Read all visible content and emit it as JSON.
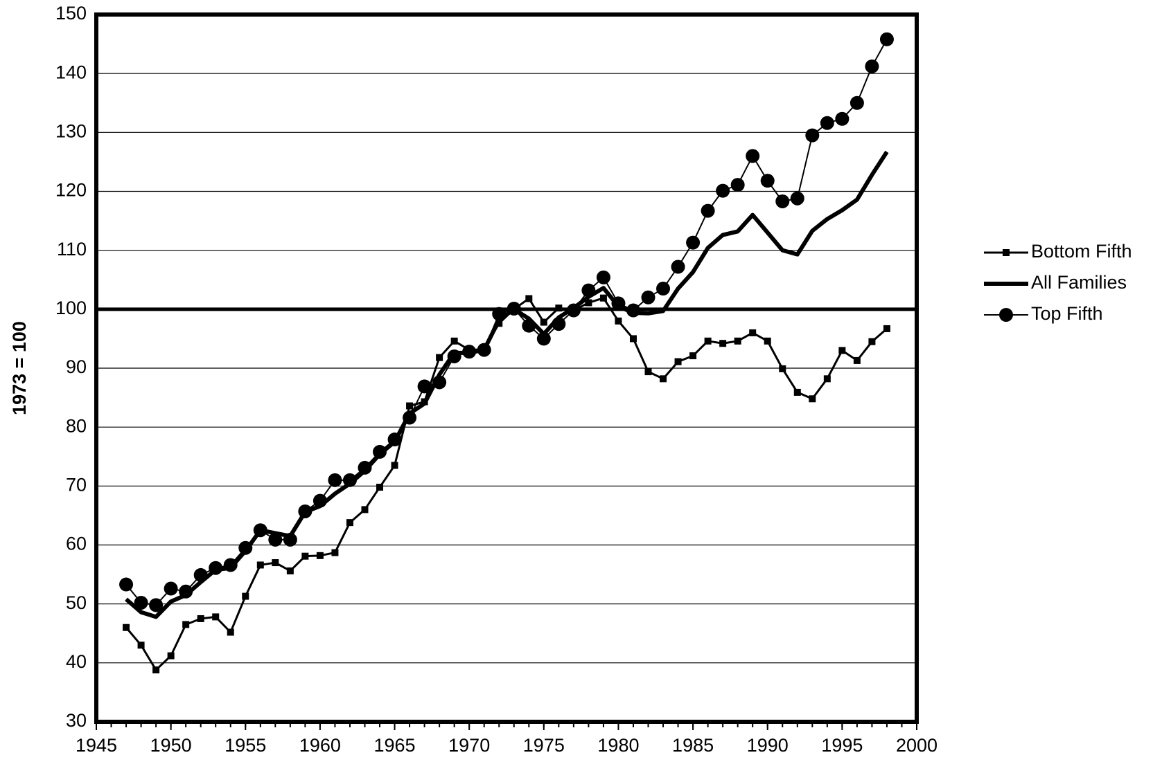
{
  "chart_data": {
    "type": "line",
    "y_label": "1973 = 100",
    "x": [
      1947,
      1948,
      1949,
      1950,
      1951,
      1952,
      1953,
      1954,
      1955,
      1956,
      1957,
      1958,
      1959,
      1960,
      1961,
      1962,
      1963,
      1964,
      1965,
      1966,
      1967,
      1968,
      1969,
      1970,
      1971,
      1972,
      1973,
      1974,
      1975,
      1976,
      1977,
      1978,
      1979,
      1980,
      1981,
      1982,
      1983,
      1984,
      1985,
      1986,
      1987,
      1988,
      1989,
      1990,
      1991,
      1992,
      1993,
      1994,
      1995,
      1996,
      1997,
      1998
    ],
    "series": [
      {
        "name": "Bottom Fifth",
        "color": "#000000",
        "line_width": 3,
        "marker": "square",
        "values": [
          46,
          43,
          38.8,
          41.2,
          46.5,
          47.5,
          47.8,
          45.2,
          51.3,
          56.6,
          57,
          55.6,
          58.1,
          58.2,
          58.7,
          63.8,
          66,
          69.8,
          73.5,
          83.6,
          84.3,
          91.8,
          94.6,
          93.1,
          93.2,
          97.6,
          100,
          101.8,
          97.8,
          100.2,
          99.8,
          101.1,
          101.9,
          98,
          95,
          89.4,
          88.2,
          91.1,
          92.1,
          94.6,
          94.2,
          94.6,
          96,
          94.6,
          89.9,
          85.9,
          84.8,
          88.2,
          93,
          91.3,
          94.5,
          96.7
        ]
      },
      {
        "name": "All Families",
        "color": "#000000",
        "line_width": 6,
        "marker": "none",
        "values": [
          50.8,
          48.6,
          47.8,
          50.4,
          51.5,
          53.7,
          55.8,
          56.1,
          59,
          62.5,
          62,
          61.5,
          65.6,
          66.6,
          68.7,
          70.4,
          72.6,
          75.4,
          77.5,
          82.3,
          84,
          88.9,
          92.6,
          92.6,
          93.1,
          98.2,
          100,
          98.4,
          95.8,
          98.6,
          100.2,
          102.1,
          103.6,
          100.5,
          99.4,
          99.3,
          99.7,
          103.5,
          106.3,
          110.4,
          112.6,
          113.2,
          116,
          113,
          110,
          109.3,
          113.3,
          115.3,
          116.8,
          118.6,
          122.8,
          126.7
        ]
      },
      {
        "name": "Top Fifth",
        "color": "#000000",
        "line_width": 2,
        "marker": "circle",
        "values": [
          53.3,
          50.2,
          49.8,
          52.6,
          52.1,
          54.9,
          56.1,
          56.6,
          59.5,
          62.5,
          60.9,
          60.9,
          65.7,
          67.5,
          71,
          71,
          73.1,
          75.8,
          77.9,
          81.6,
          86.9,
          87.6,
          92,
          92.8,
          93.1,
          99.2,
          100.1,
          97.2,
          95,
          97.5,
          99.8,
          103.2,
          105.4,
          101,
          99.8,
          102,
          103.5,
          107.2,
          111.3,
          116.7,
          120.1,
          121.1,
          126,
          121.8,
          118.3,
          118.8,
          129.5,
          131.6,
          132.3,
          135,
          141.2,
          145.8
        ]
      }
    ],
    "reference_line": 100,
    "xlim": [
      1945,
      2000
    ],
    "xticks": [
      1945,
      1950,
      1955,
      1960,
      1965,
      1970,
      1975,
      1980,
      1985,
      1990,
      1995,
      2000
    ],
    "ylim": [
      30,
      150
    ],
    "yticks": [
      30,
      40,
      50,
      60,
      70,
      80,
      90,
      100,
      110,
      120,
      130,
      140,
      150
    ],
    "grid": true,
    "legend": "right"
  }
}
